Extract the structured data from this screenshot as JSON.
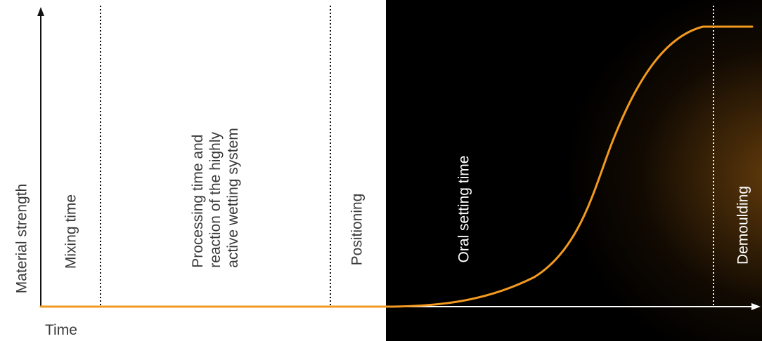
{
  "axes": {
    "y_label": "Material strength",
    "x_label": "Time"
  },
  "phases": {
    "mixing": "Mixing time",
    "processing": "Processing time and\nreaction of the highly\nactive wetting system",
    "positioning": "Positioning",
    "oral_setting": "Oral setting time",
    "demoulding": "Demoulding"
  },
  "colors": {
    "curve": "#f29a1f",
    "axis_dark": "#111111",
    "axis_light": "#ffffff",
    "panel": "#000000",
    "panel_glow": "#a56414"
  }
}
